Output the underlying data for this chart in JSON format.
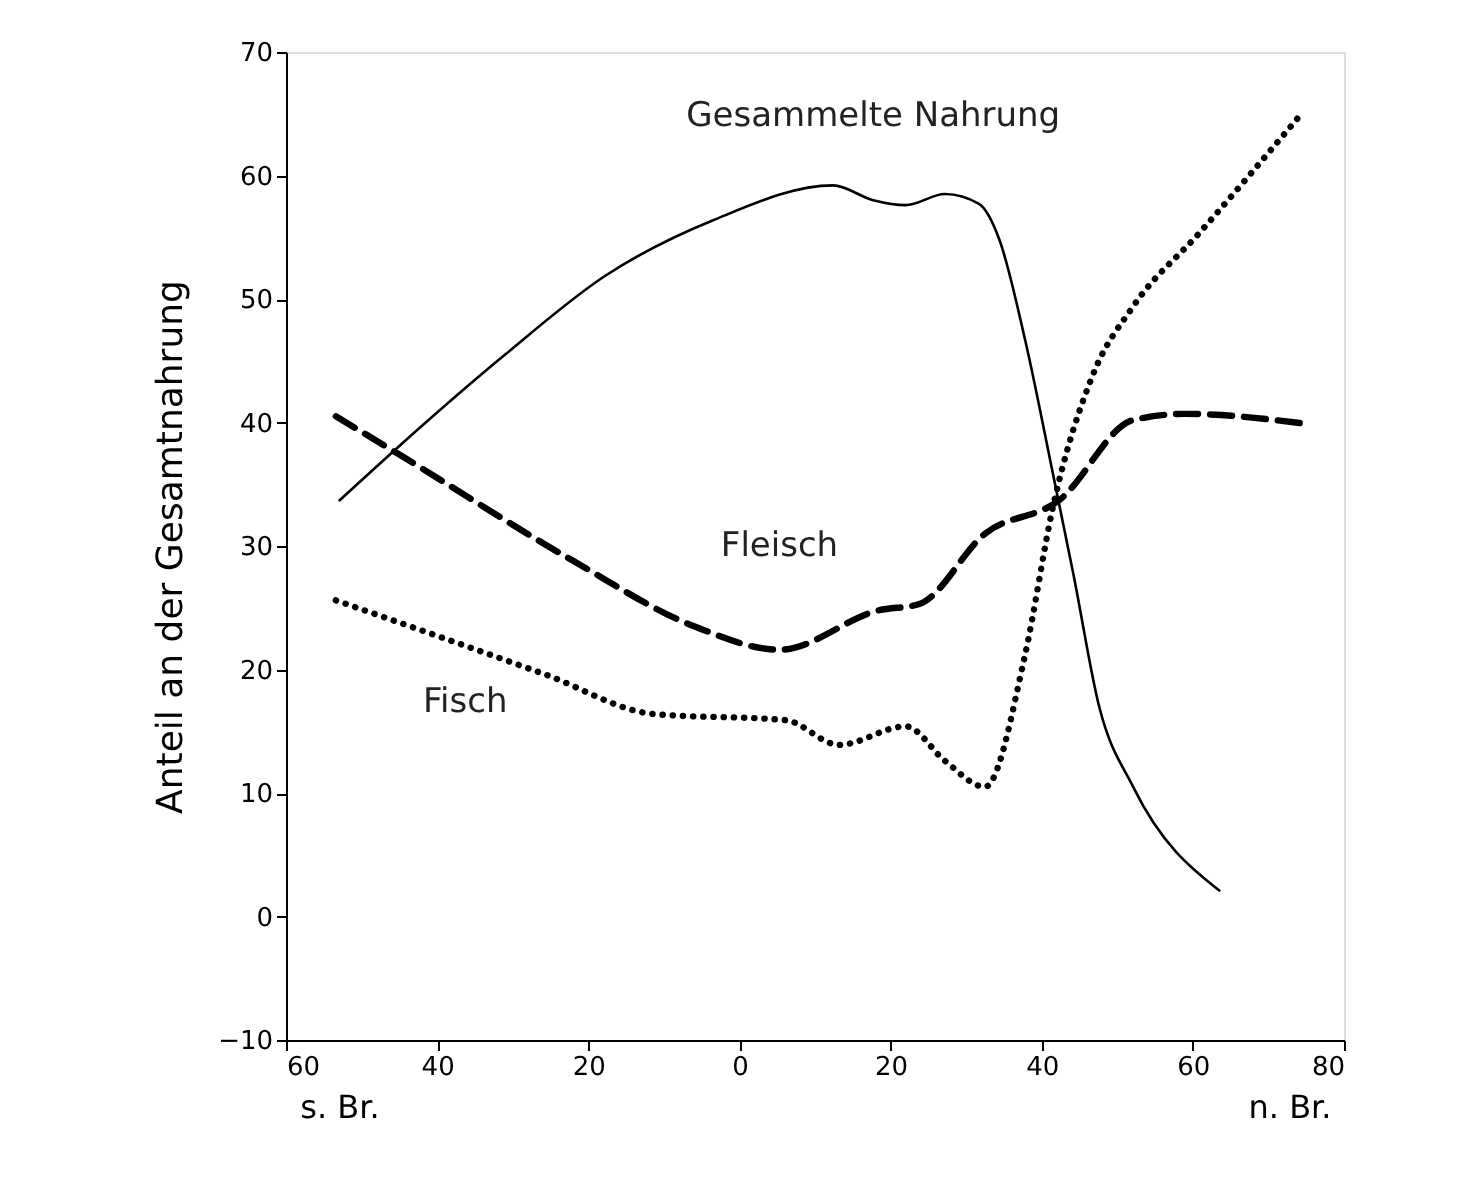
{
  "chart_data": {
    "type": "line",
    "ylabel": "Anteil an der Gesamtnahrung",
    "annotations": [
      "s. Br.",
      "n. Br."
    ],
    "xlim": [
      -60,
      80
    ],
    "xticks": [
      {
        "value": -60,
        "label": "60"
      },
      {
        "value": -40,
        "label": "40"
      },
      {
        "value": -20,
        "label": "20"
      },
      0,
      {
        "value": 20,
        "label": "20"
      },
      {
        "value": 40,
        "label": "40"
      },
      {
        "value": 60,
        "label": "60"
      },
      {
        "value": 80,
        "label": "80"
      }
    ],
    "ylim": [
      -10,
      70
    ],
    "yticks": [
      -10,
      0,
      10,
      20,
      30,
      40,
      50,
      60,
      70
    ],
    "grid": false,
    "series": [
      {
        "name": "Gesammelte Nahrung",
        "color": "#000000",
        "line_style": "solid",
        "x": [
          -52.9,
          -45,
          -31,
          -17.7,
          -3.4,
          12.4,
          17.7,
          22,
          27.2,
          31.7,
          34.4,
          37.8,
          41.5,
          44.2,
          47.6,
          52.1,
          63.5
        ],
        "values": [
          33.7,
          38.1,
          45.5,
          51.9,
          56.4,
          59.2,
          58.0,
          57.6,
          58.5,
          57.7,
          54.8,
          46.7,
          35.8,
          27.7,
          17.0,
          10.5,
          2.1
        ]
      },
      {
        "name": "Fleisch",
        "color": "#000000",
        "line_style": "dashed",
        "x": [
          -53.4,
          -45,
          -22,
          -6,
          5.3,
          18.5,
          23.8,
          32.5,
          42.3,
          52.1,
          59,
          74.9
        ],
        "values": [
          40.5,
          37.4,
          28.8,
          23.5,
          21.6,
          24.8,
          25.3,
          31,
          33.7,
          40.2,
          40.7,
          39.9
        ]
      },
      {
        "name": "Fisch",
        "color": "#000000",
        "line_style": "dotted",
        "x": [
          -53.4,
          -25.7,
          -11.4,
          6.1,
          13.2,
          22,
          27.2,
          32.5,
          37.8,
          41.5,
          46.8,
          52.1,
          60.8,
          74.1
        ],
        "values": [
          25.6,
          19.6,
          16.4,
          15.9,
          13.9,
          15.4,
          12.6,
          10.5,
          21.2,
          33.2,
          43.9,
          49.4,
          55.3,
          64.8
        ]
      }
    ]
  }
}
